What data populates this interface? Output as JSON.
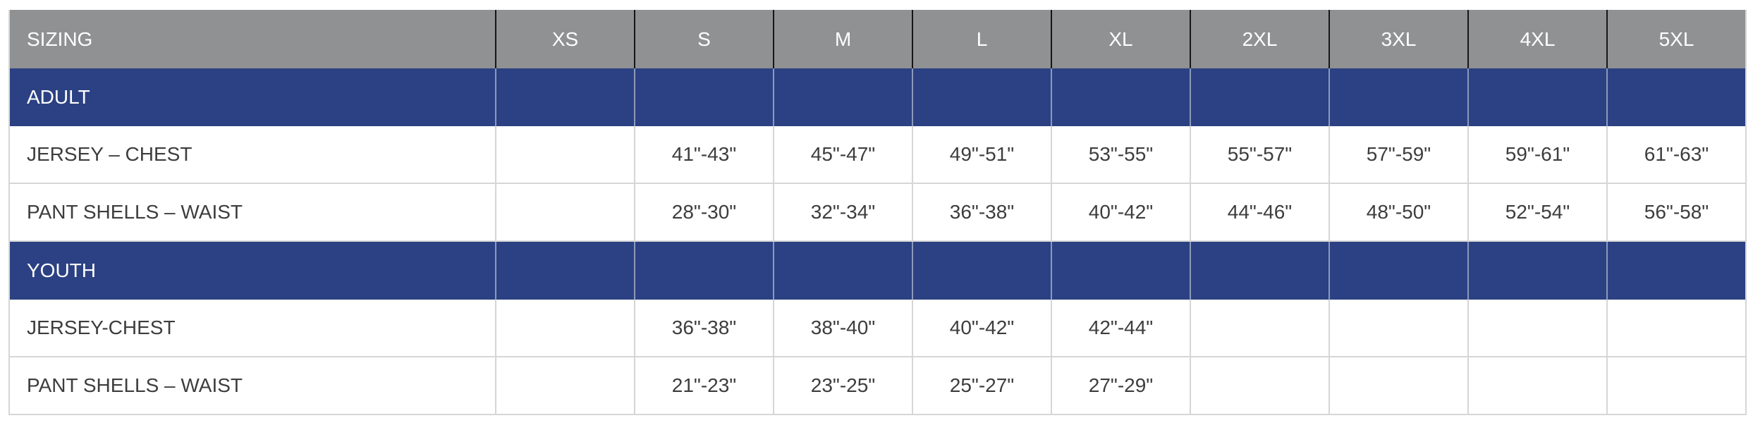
{
  "chart_data": {
    "type": "table",
    "title": "SIZING",
    "columns": [
      "SIZING",
      "XS",
      "S",
      "M",
      "L",
      "XL",
      "2XL",
      "3XL",
      "4XL",
      "5XL"
    ],
    "rows": [
      [
        "ADULT",
        "",
        "",
        "",
        "",
        "",
        "",
        "",
        "",
        ""
      ],
      [
        "JERSEY – CHEST",
        "",
        "41\"-43\"",
        "45\"-47\"",
        "49\"-51\"",
        "53\"-55\"",
        "55\"-57\"",
        "57\"-59\"",
        "59\"-61\"",
        "61\"-63\""
      ],
      [
        "PANT SHELLS – WAIST",
        "",
        "28\"-30\"",
        "32\"-34\"",
        "36\"-38\"",
        "40\"-42\"",
        "44\"-46\"",
        "48\"-50\"",
        "52\"-54\"",
        "56\"-58\""
      ],
      [
        "YOUTH",
        "",
        "",
        "",
        "",
        "",
        "",
        "",
        "",
        ""
      ],
      [
        "JERSEY-CHEST",
        "",
        "36\"-38\"",
        "38\"-40\"",
        "40\"-42\"",
        "42\"-44\"",
        "",
        "",
        "",
        ""
      ],
      [
        "PANT SHELLS – WAIST",
        "",
        "21\"-23\"",
        "23\"-25\"",
        "25\"-27\"",
        "27\"-29\"",
        "",
        "",
        "",
        ""
      ]
    ]
  },
  "table": {
    "header": {
      "label": "SIZING",
      "sizes": [
        "XS",
        "S",
        "M",
        "L",
        "XL",
        "2XL",
        "3XL",
        "4XL",
        "5XL"
      ]
    },
    "sections": [
      {
        "title": "ADULT",
        "rows": [
          {
            "label": "JERSEY – CHEST",
            "values": [
              "",
              "41\"-43\"",
              "45\"-47\"",
              "49\"-51\"",
              "53\"-55\"",
              "55\"-57\"",
              "57\"-59\"",
              "59\"-61\"",
              "61\"-63\""
            ]
          },
          {
            "label": "PANT SHELLS – WAIST",
            "values": [
              "",
              "28\"-30\"",
              "32\"-34\"",
              "36\"-38\"",
              "40\"-42\"",
              "44\"-46\"",
              "48\"-50\"",
              "52\"-54\"",
              "56\"-58\""
            ]
          }
        ]
      },
      {
        "title": "YOUTH",
        "rows": [
          {
            "label": "JERSEY-CHEST",
            "values": [
              "",
              "36\"-38\"",
              "38\"-40\"",
              "40\"-42\"",
              "42\"-44\"",
              "",
              "",
              "",
              ""
            ]
          },
          {
            "label": "PANT SHELLS – WAIST",
            "values": [
              "",
              "21\"-23\"",
              "23\"-25\"",
              "25\"-27\"",
              "27\"-29\"",
              "",
              "",
              "",
              ""
            ]
          }
        ]
      }
    ]
  },
  "colors": {
    "page_bg": "#FFFFFF",
    "header_bg": "#8F9193",
    "header_text": "#FFFFFF",
    "header_divider": "#161616",
    "section_bg": "#2B4183",
    "section_text": "#FFFFFF",
    "section_divider": "#8C99BB",
    "body_text": "#3D3D3D",
    "grid_line": "#D6D6D6"
  }
}
